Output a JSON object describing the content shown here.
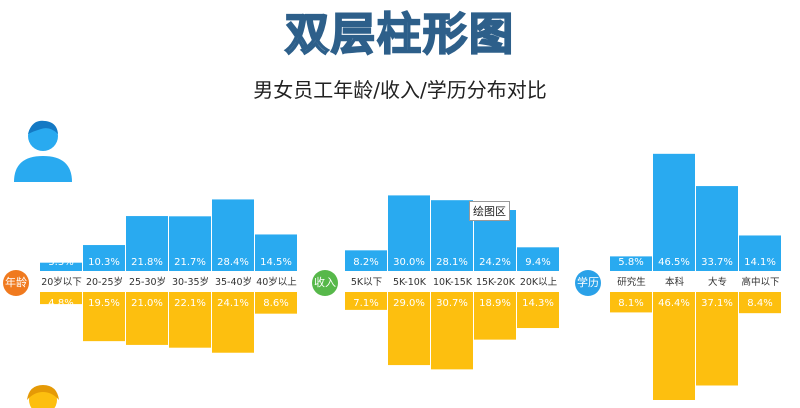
{
  "page": {
    "title": "双层柱形图",
    "subtitle": "男女员工年龄/收入/学历分布对比",
    "tooltip": "绘图区"
  },
  "colors": {
    "male": "#29aaf0",
    "female": "#fdbf0f",
    "label_bg": "#ffffff"
  },
  "icons": [
    "male-person-icon",
    "female-person-icon"
  ],
  "chart_data": [
    {
      "type": "bar",
      "badge": "年龄",
      "categories": [
        "20岁以下",
        "20-25岁",
        "25-30岁",
        "30-35岁",
        "35-40岁",
        "40岁以上"
      ],
      "series": [
        {
          "values": [
            3.3,
            10.3,
            21.8,
            21.7,
            28.4,
            14.5
          ],
          "labels": [
            "3.3%",
            "10.3%",
            "21.8%",
            "21.7%",
            "28.4%",
            "14.5%"
          ]
        },
        {
          "values": [
            4.8,
            19.5,
            21.0,
            22.1,
            24.1,
            8.6
          ],
          "labels": [
            "4.8%",
            "19.5%",
            "21.0%",
            "22.1%",
            "24.1%",
            "8.6%"
          ]
        }
      ]
    },
    {
      "type": "bar",
      "badge": "收入",
      "categories": [
        "5K以下",
        "5K-10K",
        "10K-15K",
        "15K-20K",
        "20K以上"
      ],
      "series": [
        {
          "values": [
            8.2,
            30.0,
            28.1,
            24.2,
            9.4
          ],
          "labels": [
            "8.2%",
            "30.0%",
            "28.1%",
            "24.2%",
            "9.4%"
          ]
        },
        {
          "values": [
            7.1,
            29.0,
            30.7,
            18.9,
            14.3
          ],
          "labels": [
            "7.1%",
            "29.0%",
            "30.7%",
            "18.9%",
            "14.3%"
          ]
        }
      ]
    },
    {
      "type": "bar",
      "badge": "学历",
      "categories": [
        "研究生",
        "本科",
        "大专",
        "高中以下"
      ],
      "series": [
        {
          "values": [
            5.8,
            46.5,
            33.7,
            14.1
          ],
          "labels": [
            "5.8%",
            "46.5%",
            "33.7%",
            "14.1%"
          ]
        },
        {
          "values": [
            8.1,
            46.4,
            37.1,
            8.4
          ],
          "labels": [
            "8.1%",
            "46.4%",
            "37.1%",
            "8.4%"
          ]
        }
      ]
    }
  ]
}
